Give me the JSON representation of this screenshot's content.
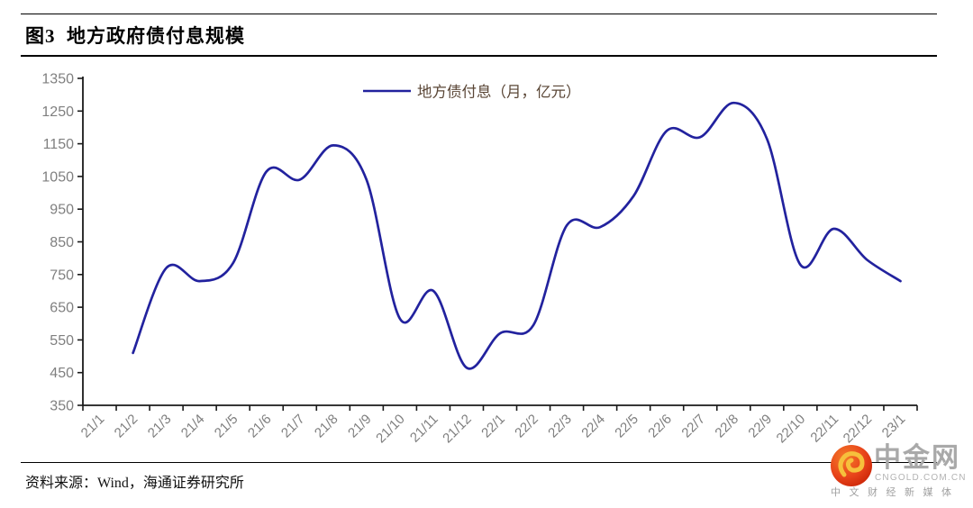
{
  "figure": {
    "title": "图3  地方政府债付息规模",
    "source": "资料来源：Wind，海通证券研究所"
  },
  "legend": {
    "label": "地方债付息（月，亿元）"
  },
  "watermark": {
    "brand": "中金网",
    "domain": "CNGOLD.COM.CN",
    "tagline": "中文财经新媒体",
    "circle_red": "#dd2b10",
    "circle_orange": "#f47b28",
    "swirl_gold": "#f6c03c"
  },
  "colors": {
    "line": "#22229e",
    "axis": "#1a1a1a",
    "tick_label": "#7f7f7f",
    "legend_text": "#5a4636"
  },
  "chart_data": {
    "type": "line",
    "title": "图3 地方政府债付息规模",
    "xlabel": "",
    "ylabel": "",
    "ylim": [
      350,
      1350
    ],
    "yticks": [
      350,
      450,
      550,
      650,
      750,
      850,
      950,
      1050,
      1150,
      1250,
      1350
    ],
    "grid": false,
    "legend_position": "top-center",
    "categories": [
      "21/1",
      "21/2",
      "21/3",
      "21/4",
      "21/5",
      "21/6",
      "21/7",
      "21/8",
      "21/9",
      "21/10",
      "21/11",
      "21/12",
      "22/1",
      "22/2",
      "22/3",
      "22/4",
      "22/5",
      "22/6",
      "22/7",
      "22/8",
      "22/9",
      "22/10",
      "22/11",
      "22/12",
      "23/1"
    ],
    "series": [
      {
        "name": "地方债付息（月，亿元）",
        "values": [
          null,
          510,
          770,
          730,
          785,
          1065,
          1040,
          1145,
          1040,
          615,
          700,
          465,
          570,
          595,
          900,
          895,
          990,
          1190,
          1170,
          1275,
          1165,
          780,
          890,
          795,
          730
        ]
      }
    ]
  }
}
